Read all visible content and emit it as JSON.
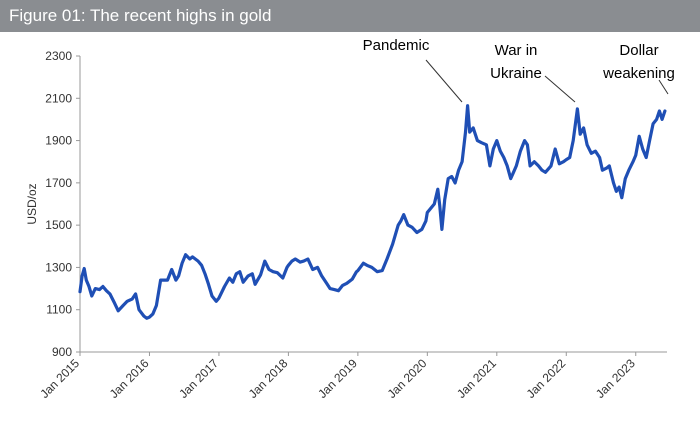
{
  "header": {
    "title": "Figure 01: The recent highs in gold"
  },
  "chart_data": {
    "type": "line",
    "title": "Figure 01: The recent highs in gold",
    "xlabel": "",
    "ylabel": "USD/oz",
    "ylim": [
      900,
      2300
    ],
    "yticks": [
      900,
      1100,
      1300,
      1500,
      1700,
      1900,
      2100,
      2300
    ],
    "xlim": [
      2015.0,
      2023.45
    ],
    "xticks": [
      {
        "label": "Jan 2015",
        "x": 2015
      },
      {
        "label": "Jan 2016",
        "x": 2016
      },
      {
        "label": "Jan 2017",
        "x": 2017
      },
      {
        "label": "Jan 2018",
        "x": 2018
      },
      {
        "label": "Jan 2019",
        "x": 2019
      },
      {
        "label": "Jan 2020",
        "x": 2020
      },
      {
        "label": "Jan 2021",
        "x": 2021
      },
      {
        "label": "Jan 2022",
        "x": 2022
      },
      {
        "label": "Jan 2023",
        "x": 2023
      }
    ],
    "grid": false,
    "line_color": "#1f4fb5",
    "series": [
      {
        "points": [
          [
            2015.0,
            1185
          ],
          [
            2015.03,
            1260
          ],
          [
            2015.06,
            1295
          ],
          [
            2015.09,
            1240
          ],
          [
            2015.13,
            1210
          ],
          [
            2015.17,
            1165
          ],
          [
            2015.22,
            1200
          ],
          [
            2015.28,
            1195
          ],
          [
            2015.33,
            1210
          ],
          [
            2015.38,
            1190
          ],
          [
            2015.43,
            1175
          ],
          [
            2015.5,
            1130
          ],
          [
            2015.55,
            1095
          ],
          [
            2015.62,
            1120
          ],
          [
            2015.68,
            1140
          ],
          [
            2015.75,
            1150
          ],
          [
            2015.8,
            1175
          ],
          [
            2015.85,
            1100
          ],
          [
            2015.92,
            1070
          ],
          [
            2015.96,
            1060
          ],
          [
            2016.0,
            1065
          ],
          [
            2016.05,
            1080
          ],
          [
            2016.1,
            1120
          ],
          [
            2016.16,
            1240
          ],
          [
            2016.2,
            1240
          ],
          [
            2016.26,
            1240
          ],
          [
            2016.32,
            1290
          ],
          [
            2016.38,
            1240
          ],
          [
            2016.42,
            1260
          ],
          [
            2016.47,
            1320
          ],
          [
            2016.52,
            1360
          ],
          [
            2016.58,
            1340
          ],
          [
            2016.62,
            1350
          ],
          [
            2016.7,
            1330
          ],
          [
            2016.75,
            1310
          ],
          [
            2016.8,
            1270
          ],
          [
            2016.85,
            1220
          ],
          [
            2016.9,
            1165
          ],
          [
            2016.96,
            1140
          ],
          [
            2017.0,
            1155
          ],
          [
            2017.08,
            1210
          ],
          [
            2017.15,
            1250
          ],
          [
            2017.2,
            1230
          ],
          [
            2017.25,
            1270
          ],
          [
            2017.3,
            1280
          ],
          [
            2017.35,
            1230
          ],
          [
            2017.42,
            1260
          ],
          [
            2017.48,
            1270
          ],
          [
            2017.52,
            1220
          ],
          [
            2017.6,
            1265
          ],
          [
            2017.66,
            1330
          ],
          [
            2017.72,
            1290
          ],
          [
            2017.78,
            1280
          ],
          [
            2017.84,
            1275
          ],
          [
            2017.92,
            1250
          ],
          [
            2017.98,
            1300
          ],
          [
            2018.0,
            1310
          ],
          [
            2018.05,
            1330
          ],
          [
            2018.1,
            1340
          ],
          [
            2018.17,
            1325
          ],
          [
            2018.22,
            1330
          ],
          [
            2018.28,
            1340
          ],
          [
            2018.35,
            1290
          ],
          [
            2018.42,
            1300
          ],
          [
            2018.48,
            1260
          ],
          [
            2018.55,
            1225
          ],
          [
            2018.6,
            1200
          ],
          [
            2018.66,
            1195
          ],
          [
            2018.72,
            1190
          ],
          [
            2018.78,
            1215
          ],
          [
            2018.84,
            1225
          ],
          [
            2018.92,
            1245
          ],
          [
            2018.98,
            1280
          ],
          [
            2019.0,
            1285
          ],
          [
            2019.08,
            1320
          ],
          [
            2019.13,
            1310
          ],
          [
            2019.2,
            1300
          ],
          [
            2019.28,
            1280
          ],
          [
            2019.35,
            1285
          ],
          [
            2019.42,
            1340
          ],
          [
            2019.5,
            1410
          ],
          [
            2019.58,
            1500
          ],
          [
            2019.62,
            1520
          ],
          [
            2019.66,
            1550
          ],
          [
            2019.72,
            1500
          ],
          [
            2019.78,
            1490
          ],
          [
            2019.85,
            1465
          ],
          [
            2019.92,
            1480
          ],
          [
            2019.98,
            1520
          ],
          [
            2020.0,
            1560
          ],
          [
            2020.05,
            1580
          ],
          [
            2020.1,
            1600
          ],
          [
            2020.15,
            1670
          ],
          [
            2020.18,
            1590
          ],
          [
            2020.21,
            1480
          ],
          [
            2020.25,
            1620
          ],
          [
            2020.3,
            1720
          ],
          [
            2020.35,
            1730
          ],
          [
            2020.4,
            1700
          ],
          [
            2020.45,
            1760
          ],
          [
            2020.5,
            1800
          ],
          [
            2020.55,
            1940
          ],
          [
            2020.58,
            2065
          ],
          [
            2020.61,
            1940
          ],
          [
            2020.66,
            1960
          ],
          [
            2020.72,
            1900
          ],
          [
            2020.78,
            1890
          ],
          [
            2020.85,
            1880
          ],
          [
            2020.9,
            1780
          ],
          [
            2020.95,
            1860
          ],
          [
            2021.0,
            1900
          ],
          [
            2021.05,
            1850
          ],
          [
            2021.1,
            1820
          ],
          [
            2021.15,
            1780
          ],
          [
            2021.2,
            1720
          ],
          [
            2021.24,
            1750
          ],
          [
            2021.28,
            1780
          ],
          [
            2021.34,
            1850
          ],
          [
            2021.4,
            1900
          ],
          [
            2021.44,
            1880
          ],
          [
            2021.48,
            1780
          ],
          [
            2021.54,
            1800
          ],
          [
            2021.6,
            1780
          ],
          [
            2021.65,
            1760
          ],
          [
            2021.7,
            1750
          ],
          [
            2021.78,
            1780
          ],
          [
            2021.84,
            1860
          ],
          [
            2021.9,
            1790
          ],
          [
            2021.96,
            1800
          ],
          [
            2022.0,
            1810
          ],
          [
            2022.05,
            1820
          ],
          [
            2022.1,
            1900
          ],
          [
            2022.16,
            2050
          ],
          [
            2022.2,
            1930
          ],
          [
            2022.25,
            1960
          ],
          [
            2022.3,
            1880
          ],
          [
            2022.36,
            1840
          ],
          [
            2022.42,
            1850
          ],
          [
            2022.48,
            1820
          ],
          [
            2022.52,
            1760
          ],
          [
            2022.58,
            1770
          ],
          [
            2022.62,
            1780
          ],
          [
            2022.68,
            1700
          ],
          [
            2022.72,
            1660
          ],
          [
            2022.76,
            1680
          ],
          [
            2022.8,
            1630
          ],
          [
            2022.85,
            1720
          ],
          [
            2022.9,
            1760
          ],
          [
            2022.96,
            1800
          ],
          [
            2023.0,
            1830
          ],
          [
            2023.05,
            1920
          ],
          [
            2023.1,
            1860
          ],
          [
            2023.15,
            1820
          ],
          [
            2023.2,
            1900
          ],
          [
            2023.25,
            1980
          ],
          [
            2023.3,
            2000
          ],
          [
            2023.34,
            2040
          ],
          [
            2023.38,
            2000
          ],
          [
            2023.42,
            2040
          ]
        ]
      }
    ],
    "annotations": [
      {
        "lines": [
          "Pandemic"
        ]
      },
      {
        "lines": [
          "War in",
          "Ukraine"
        ]
      },
      {
        "lines": [
          "Dollar",
          "weakening"
        ]
      }
    ]
  }
}
